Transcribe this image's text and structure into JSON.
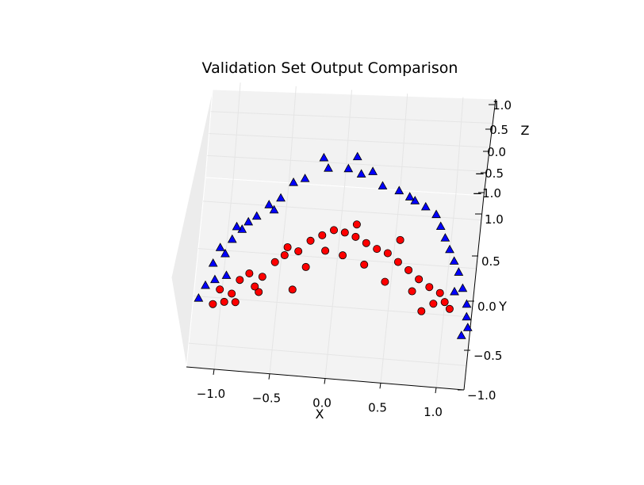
{
  "chart_data": {
    "type": "scatter",
    "projection": "3d",
    "title": "Validation Set Output Comparison",
    "xlabel": "X",
    "ylabel": "Y",
    "zlabel": "Z",
    "xlim": [
      -1.25,
      1.25
    ],
    "ylim": [
      -0.75,
      1.25
    ],
    "zlim": [
      -1.0,
      1.0
    ],
    "x_ticks": [
      "−1.0",
      "−0.5",
      "0.0",
      "0.5",
      "1.0"
    ],
    "y_ticks": [
      "−1.0",
      "−0.5",
      "0.0",
      "0.5",
      "1.0"
    ],
    "z_ticks": [
      "−1.0",
      "−0.5",
      "0.0",
      "0.5",
      "1.0"
    ],
    "grid": true,
    "legend": null,
    "colors": {
      "series_a": "#0000ff",
      "series_b": "#ff0000",
      "pane": "#f2f2f2",
      "grid": "#e5e5e5"
    },
    "series": [
      {
        "marker": "triangle",
        "color": "#0000ff",
        "points": [
          [
            -1.14,
            -0.26,
            0.21
          ],
          [
            -1.06,
            -0.22,
            0.3
          ],
          [
            -0.96,
            -0.18,
            0.34
          ],
          [
            -1.09,
            -0.06,
            0.33
          ],
          [
            -1.04,
            0.1,
            0.36
          ],
          [
            -0.94,
            0.18,
            0.41
          ],
          [
            -0.86,
            0.27,
            0.48
          ],
          [
            -0.99,
            0.04,
            0.36
          ],
          [
            -0.91,
            0.3,
            0.46
          ],
          [
            -0.74,
            0.39,
            0.57
          ],
          [
            -0.64,
            0.5,
            0.63
          ],
          [
            -0.54,
            0.55,
            0.72
          ],
          [
            -0.44,
            0.7,
            0.79
          ],
          [
            -0.34,
            0.73,
            0.85
          ],
          [
            -0.19,
            0.95,
            0.88
          ],
          [
            -0.14,
            0.82,
            0.96
          ],
          [
            0.04,
            0.82,
            0.99
          ],
          [
            0.11,
            0.95,
            0.99
          ],
          [
            0.16,
            0.78,
            0.97
          ],
          [
            0.26,
            0.82,
            0.95
          ],
          [
            0.36,
            0.7,
            0.88
          ],
          [
            0.51,
            0.7,
            0.76
          ],
          [
            0.66,
            0.63,
            0.69
          ],
          [
            0.76,
            0.6,
            0.61
          ],
          [
            0.86,
            0.56,
            0.51
          ],
          [
            0.91,
            0.46,
            0.45
          ],
          [
            0.96,
            0.36,
            0.4
          ],
          [
            1.01,
            0.26,
            0.35
          ],
          [
            1.06,
            0.16,
            0.3
          ],
          [
            1.11,
            0.06,
            0.27
          ],
          [
            1.16,
            -0.09,
            0.23
          ],
          [
            1.21,
            -0.24,
            0.2
          ],
          [
            1.22,
            -0.36,
            0.17
          ],
          [
            1.24,
            -0.46,
            0.14
          ],
          [
            1.19,
            -0.54,
            0.12
          ],
          [
            -1.19,
            -0.39,
            0.18
          ],
          [
            -0.81,
            0.34,
            0.52
          ],
          [
            0.61,
            0.66,
            0.71
          ],
          [
            1.09,
            -0.14,
            0.26
          ],
          [
            -0.59,
            0.44,
            0.66
          ]
        ]
      },
      {
        "marker": "circle",
        "color": "#ff0000",
        "points": [
          [
            -1.06,
            -0.36,
            -0.08
          ],
          [
            -0.96,
            -0.34,
            -0.04
          ],
          [
            -0.9,
            -0.26,
            0.0
          ],
          [
            -0.84,
            -0.12,
            0.03
          ],
          [
            -0.76,
            -0.06,
            0.08
          ],
          [
            -0.64,
            -0.1,
            0.13
          ],
          [
            -0.54,
            0.04,
            0.2
          ],
          [
            -0.46,
            0.11,
            0.23
          ],
          [
            -0.34,
            0.14,
            0.3
          ],
          [
            -0.24,
            0.24,
            0.36
          ],
          [
            -0.14,
            0.29,
            0.41
          ],
          [
            -0.04,
            0.34,
            0.45
          ],
          [
            0.06,
            0.32,
            0.46
          ],
          [
            0.16,
            0.29,
            0.44
          ],
          [
            0.26,
            0.24,
            0.42
          ],
          [
            0.36,
            0.2,
            0.38
          ],
          [
            0.46,
            0.18,
            0.33
          ],
          [
            0.56,
            0.11,
            0.29
          ],
          [
            0.66,
            0.05,
            0.24
          ],
          [
            0.76,
            -0.02,
            0.19
          ],
          [
            0.86,
            -0.08,
            0.15
          ],
          [
            0.96,
            -0.12,
            0.11
          ],
          [
            1.01,
            -0.2,
            0.08
          ],
          [
            1.06,
            -0.26,
            0.06
          ],
          [
            -0.26,
            0.02,
            0.18
          ],
          [
            -0.66,
            -0.24,
            0.06
          ],
          [
            0.26,
            0.05,
            0.31
          ],
          [
            0.71,
            -0.14,
            0.16
          ],
          [
            -0.86,
            -0.34,
            -0.02
          ],
          [
            0.06,
            0.12,
            0.34
          ],
          [
            -0.36,
            -0.2,
            0.1
          ],
          [
            0.46,
            -0.08,
            0.21
          ],
          [
            -1.01,
            -0.22,
            -0.02
          ],
          [
            0.91,
            -0.22,
            0.06
          ],
          [
            -0.44,
            0.18,
            0.28
          ],
          [
            0.16,
            0.4,
            0.5
          ],
          [
            -0.7,
            -0.18,
            0.04
          ],
          [
            0.56,
            0.31,
            0.38
          ],
          [
            -0.1,
            0.16,
            0.32
          ],
          [
            0.81,
            -0.3,
            0.04
          ]
        ]
      }
    ]
  }
}
